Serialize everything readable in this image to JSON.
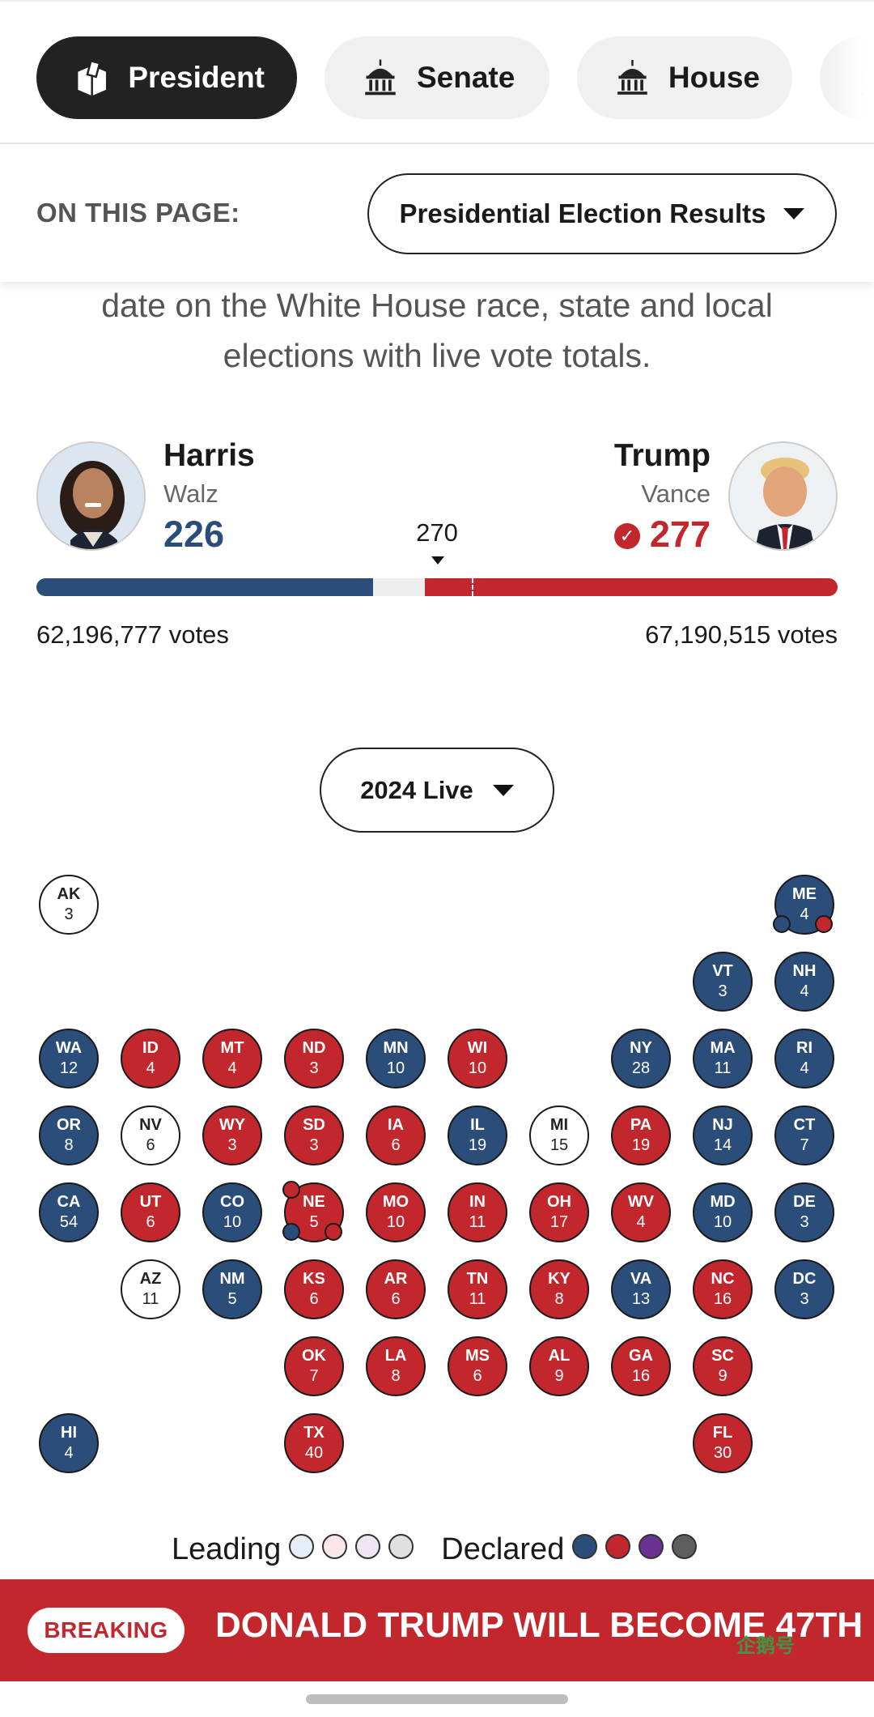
{
  "tabs": [
    {
      "label": "President",
      "icon": "ballot-box-icon",
      "active": true
    },
    {
      "label": "Senate",
      "icon": "capitol-icon",
      "active": false
    },
    {
      "label": "House",
      "icon": "capitol-icon",
      "active": false
    }
  ],
  "on_this_page": {
    "label": "ON THIS PAGE:",
    "selected": "Presidential Election Results"
  },
  "intro": {
    "line1": "date on the White House race, state and local",
    "line2": "elections with live vote totals."
  },
  "candidates": {
    "dem": {
      "name": "Harris",
      "running_mate": "Walz",
      "electoral_votes": "226",
      "popular_votes": "62,196,777 votes",
      "color": "#2b4d7a"
    },
    "rep": {
      "name": "Trump",
      "running_mate": "Vance",
      "electoral_votes": "277",
      "popular_votes": "67,190,515 votes",
      "color": "#c1272d",
      "winner": true
    }
  },
  "threshold": "270",
  "total_electoral_votes": 538,
  "year_selector": {
    "selected": "2024 Live"
  },
  "states": [
    {
      "abbr": "AK",
      "ev": "3",
      "status": "U"
    },
    {
      "abbr": "ME",
      "ev": "4",
      "status": "D",
      "split": true
    },
    {
      "abbr": "VT",
      "ev": "3",
      "status": "D"
    },
    {
      "abbr": "NH",
      "ev": "4",
      "status": "D"
    },
    {
      "abbr": "WA",
      "ev": "12",
      "status": "D"
    },
    {
      "abbr": "ID",
      "ev": "4",
      "status": "R"
    },
    {
      "abbr": "MT",
      "ev": "4",
      "status": "R"
    },
    {
      "abbr": "ND",
      "ev": "3",
      "status": "R"
    },
    {
      "abbr": "MN",
      "ev": "10",
      "status": "D"
    },
    {
      "abbr": "WI",
      "ev": "10",
      "status": "R"
    },
    {
      "abbr": "NY",
      "ev": "28",
      "status": "D"
    },
    {
      "abbr": "MA",
      "ev": "11",
      "status": "D"
    },
    {
      "abbr": "RI",
      "ev": "4",
      "status": "D"
    },
    {
      "abbr": "OR",
      "ev": "8",
      "status": "D"
    },
    {
      "abbr": "NV",
      "ev": "6",
      "status": "U"
    },
    {
      "abbr": "WY",
      "ev": "3",
      "status": "R"
    },
    {
      "abbr": "SD",
      "ev": "3",
      "status": "R"
    },
    {
      "abbr": "IA",
      "ev": "6",
      "status": "R"
    },
    {
      "abbr": "IL",
      "ev": "19",
      "status": "D"
    },
    {
      "abbr": "MI",
      "ev": "15",
      "status": "U"
    },
    {
      "abbr": "PA",
      "ev": "19",
      "status": "R"
    },
    {
      "abbr": "NJ",
      "ev": "14",
      "status": "D"
    },
    {
      "abbr": "CT",
      "ev": "7",
      "status": "D"
    },
    {
      "abbr": "CA",
      "ev": "54",
      "status": "D"
    },
    {
      "abbr": "UT",
      "ev": "6",
      "status": "R"
    },
    {
      "abbr": "CO",
      "ev": "10",
      "status": "D"
    },
    {
      "abbr": "NE",
      "ev": "5",
      "status": "R",
      "split": true
    },
    {
      "abbr": "MO",
      "ev": "10",
      "status": "R"
    },
    {
      "abbr": "IN",
      "ev": "11",
      "status": "R"
    },
    {
      "abbr": "OH",
      "ev": "17",
      "status": "R"
    },
    {
      "abbr": "WV",
      "ev": "4",
      "status": "R"
    },
    {
      "abbr": "MD",
      "ev": "10",
      "status": "D"
    },
    {
      "abbr": "DE",
      "ev": "3",
      "status": "D"
    },
    {
      "abbr": "AZ",
      "ev": "11",
      "status": "U"
    },
    {
      "abbr": "NM",
      "ev": "5",
      "status": "D"
    },
    {
      "abbr": "KS",
      "ev": "6",
      "status": "R"
    },
    {
      "abbr": "AR",
      "ev": "6",
      "status": "R"
    },
    {
      "abbr": "TN",
      "ev": "11",
      "status": "R"
    },
    {
      "abbr": "KY",
      "ev": "8",
      "status": "R"
    },
    {
      "abbr": "VA",
      "ev": "13",
      "status": "D"
    },
    {
      "abbr": "NC",
      "ev": "16",
      "status": "R"
    },
    {
      "abbr": "DC",
      "ev": "3",
      "status": "D"
    },
    {
      "abbr": "OK",
      "ev": "7",
      "status": "R"
    },
    {
      "abbr": "LA",
      "ev": "8",
      "status": "R"
    },
    {
      "abbr": "MS",
      "ev": "6",
      "status": "R"
    },
    {
      "abbr": "AL",
      "ev": "9",
      "status": "R"
    },
    {
      "abbr": "GA",
      "ev": "16",
      "status": "R"
    },
    {
      "abbr": "SC",
      "ev": "9",
      "status": "R"
    },
    {
      "abbr": "HI",
      "ev": "4",
      "status": "D"
    },
    {
      "abbr": "TX",
      "ev": "40",
      "status": "R"
    },
    {
      "abbr": "FL",
      "ev": "30",
      "status": "R"
    }
  ],
  "legend": {
    "leading_label": "Leading",
    "leading_colors": [
      "#e3eef9",
      "#fbe7ea",
      "#efe6f5",
      "#e0e0e0"
    ],
    "declared_label": "Declared",
    "declared_colors": [
      "#2b4d7a",
      "#c1272d",
      "#6b3391",
      "#5e5e5e"
    ]
  },
  "breaking": {
    "badge": "BREAKING",
    "headline": "DONALD TRUMP WILL BECOME 47TH",
    "watermark": "企鹅号"
  }
}
